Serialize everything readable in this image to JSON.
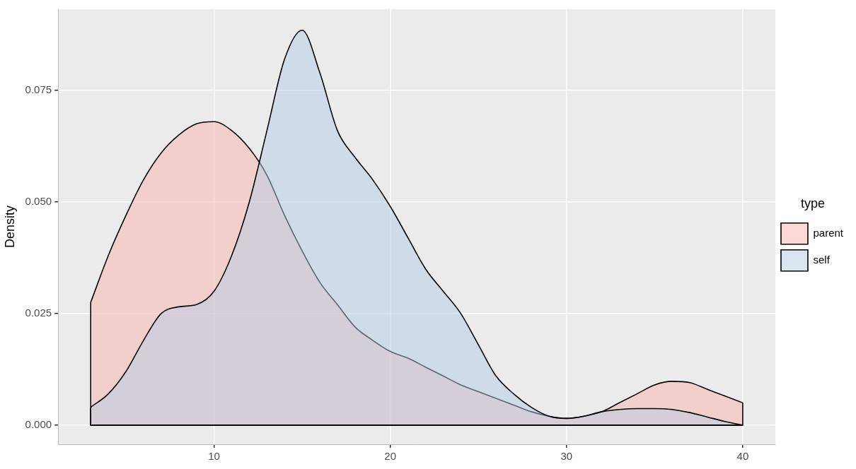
{
  "chart_data": {
    "type": "area",
    "y_label": "Density",
    "legend_title": "type",
    "legend": "right",
    "grid": true,
    "x": [
      3,
      4,
      5,
      6,
      7,
      8,
      9,
      10,
      11,
      12,
      13,
      14,
      15,
      16,
      17,
      18,
      19,
      20,
      21,
      22,
      23,
      24,
      25,
      26,
      27,
      28,
      29,
      30,
      31,
      32,
      33,
      34,
      35,
      36,
      37,
      38,
      39,
      40
    ],
    "series": [
      {
        "name": "parent",
        "color": "#FBB4AE",
        "values": [
          0.0275,
          0.038,
          0.047,
          0.055,
          0.061,
          0.065,
          0.0675,
          0.068,
          0.066,
          0.062,
          0.056,
          0.047,
          0.039,
          0.032,
          0.027,
          0.022,
          0.019,
          0.0165,
          0.015,
          0.013,
          0.011,
          0.009,
          0.0075,
          0.006,
          0.0045,
          0.003,
          0.002,
          0.0015,
          0.002,
          0.003,
          0.005,
          0.007,
          0.009,
          0.0098,
          0.0095,
          0.008,
          0.0065,
          0.005
        ]
      },
      {
        "name": "self",
        "color": "#B3CDE3",
        "values": [
          0.004,
          0.007,
          0.012,
          0.019,
          0.025,
          0.0265,
          0.027,
          0.03,
          0.038,
          0.05,
          0.066,
          0.082,
          0.0885,
          0.079,
          0.066,
          0.06,
          0.055,
          0.049,
          0.042,
          0.035,
          0.03,
          0.025,
          0.018,
          0.011,
          0.007,
          0.004,
          0.002,
          0.0015,
          0.002,
          0.003,
          0.0035,
          0.0037,
          0.0037,
          0.0035,
          0.0028,
          0.0018,
          0.0008,
          0.0
        ]
      }
    ],
    "xlim": [
      1.15,
      41.85
    ],
    "xticks": [
      10,
      20,
      30,
      40
    ],
    "ylim": [
      -0.0043,
      0.0932
    ],
    "yticks": [
      {
        "value": 0,
        "label": "0.000"
      },
      {
        "value": 0.025,
        "label": "0.025"
      },
      {
        "value": 0.05,
        "label": "0.050"
      },
      {
        "value": 0.075,
        "label": "0.075"
      }
    ]
  }
}
